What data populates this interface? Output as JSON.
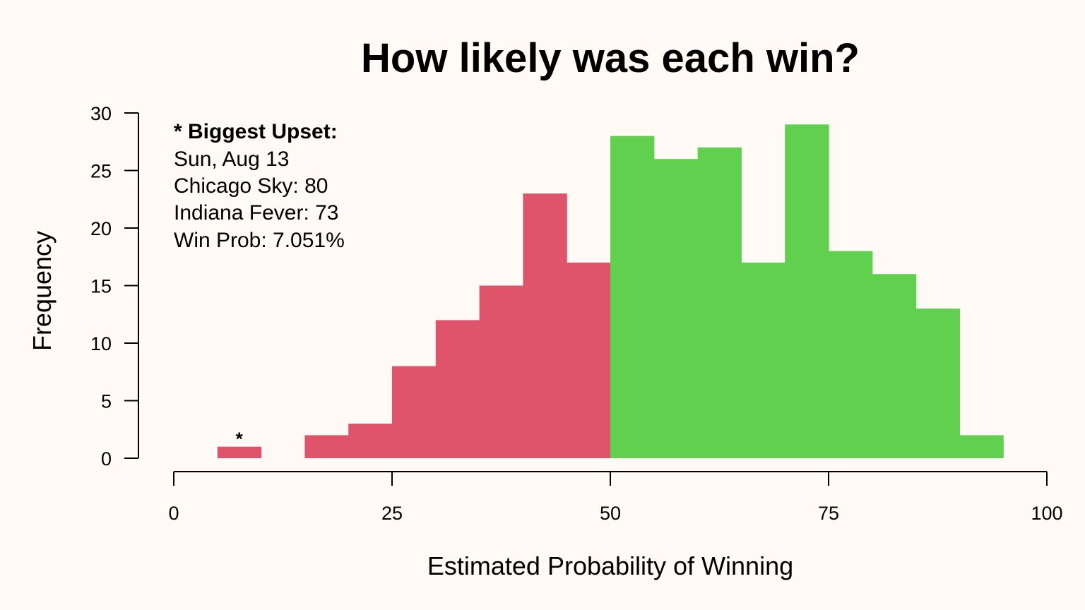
{
  "chart_data": {
    "type": "bar",
    "title": "How likely was each win?",
    "xlabel": "Estimated Probability of Winning",
    "ylabel": "Frequency",
    "xlim": [
      0,
      100
    ],
    "ylim": [
      0,
      30
    ],
    "x_ticks": [
      0,
      25,
      50,
      75,
      100
    ],
    "y_ticks": [
      0,
      5,
      10,
      15,
      20,
      25,
      30
    ],
    "grid": false,
    "legend": "none",
    "bin_width": 5,
    "bins": [
      {
        "start": 0,
        "end": 5,
        "count": 0
      },
      {
        "start": 5,
        "end": 10,
        "count": 1
      },
      {
        "start": 10,
        "end": 15,
        "count": 0
      },
      {
        "start": 15,
        "end": 20,
        "count": 2
      },
      {
        "start": 20,
        "end": 25,
        "count": 3
      },
      {
        "start": 25,
        "end": 30,
        "count": 8
      },
      {
        "start": 30,
        "end": 35,
        "count": 12
      },
      {
        "start": 35,
        "end": 40,
        "count": 15
      },
      {
        "start": 40,
        "end": 45,
        "count": 23
      },
      {
        "start": 45,
        "end": 50,
        "count": 17
      },
      {
        "start": 50,
        "end": 55,
        "count": 28
      },
      {
        "start": 55,
        "end": 60,
        "count": 26
      },
      {
        "start": 60,
        "end": 65,
        "count": 27
      },
      {
        "start": 65,
        "end": 70,
        "count": 17
      },
      {
        "start": 70,
        "end": 75,
        "count": 29
      },
      {
        "start": 75,
        "end": 80,
        "count": 18
      },
      {
        "start": 80,
        "end": 85,
        "count": 16
      },
      {
        "start": 85,
        "end": 90,
        "count": 13
      },
      {
        "start": 90,
        "end": 95,
        "count": 2
      },
      {
        "start": 95,
        "end": 100,
        "count": 0
      }
    ],
    "colors": {
      "below_50": "#DF536B",
      "above_50": "#61D04F",
      "background": "#FFFAF6"
    },
    "upset_marker": {
      "x": 7.051,
      "label": "*"
    },
    "annotation": {
      "heading": "* Biggest Upset:",
      "lines": [
        "Sun, Aug 13",
        "Chicago Sky: 80",
        "Indiana Fever: 73",
        "Win Prob: 7.051%"
      ]
    }
  }
}
